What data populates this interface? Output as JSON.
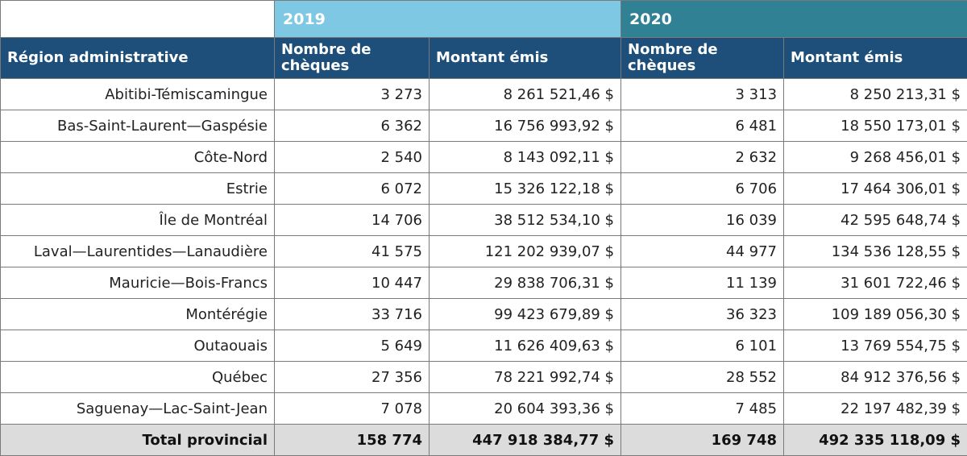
{
  "years": [
    "2019",
    "2020"
  ],
  "headers": {
    "region": "Région administrative",
    "count": "Nombre de chèques",
    "amount": "Montant émis"
  },
  "rows": [
    {
      "region": "Abitibi-Témiscamingue",
      "count_2019": "3 273",
      "amount_2019": "8 261 521,46 $",
      "count_2020": "3 313",
      "amount_2020": "8 250 213,31 $"
    },
    {
      "region": "Bas-Saint-Laurent—Gaspésie",
      "count_2019": "6 362",
      "amount_2019": "16 756 993,92 $",
      "count_2020": "6 481",
      "amount_2020": "18 550 173,01 $"
    },
    {
      "region": "Côte-Nord",
      "count_2019": "2 540",
      "amount_2019": "8 143 092,11 $",
      "count_2020": "2 632",
      "amount_2020": "9 268 456,01 $"
    },
    {
      "region": "Estrie",
      "count_2019": "6 072",
      "amount_2019": "15 326 122,18 $",
      "count_2020": "6 706",
      "amount_2020": "17 464 306,01 $"
    },
    {
      "region": "Île de Montréal",
      "count_2019": "14 706",
      "amount_2019": "38 512 534,10 $",
      "count_2020": "16 039",
      "amount_2020": "42 595 648,74 $"
    },
    {
      "region": "Laval—Laurentides—Lanaudière",
      "count_2019": "41 575",
      "amount_2019": "121 202 939,07 $",
      "count_2020": "44 977",
      "amount_2020": "134 536 128,55 $"
    },
    {
      "region": "Mauricie—Bois-Francs",
      "count_2019": "10 447",
      "amount_2019": "29 838 706,31 $",
      "count_2020": "11 139",
      "amount_2020": "31 601 722,46 $"
    },
    {
      "region": "Montérégie",
      "count_2019": "33 716",
      "amount_2019": "99 423 679,89 $",
      "count_2020": "36 323",
      "amount_2020": "109 189 056,30 $"
    },
    {
      "region": "Outaouais",
      "count_2019": "5 649",
      "amount_2019": "11 626 409,63 $",
      "count_2020": "6 101",
      "amount_2020": "13 769 554,75 $"
    },
    {
      "region": "Québec",
      "count_2019": "27 356",
      "amount_2019": "78 221 992,74 $",
      "count_2020": "28 552",
      "amount_2020": "84 912 376,56 $"
    },
    {
      "region": "Saguenay—Lac-Saint-Jean",
      "count_2019": "7 078",
      "amount_2019": "20 604 393,36 $",
      "count_2020": "7 485",
      "amount_2020": "22 197 482,39 $"
    }
  ],
  "total": {
    "label": "Total provincial",
    "count_2019": "158 774",
    "amount_2019": "447 918 384,77 $",
    "count_2020": "169 748",
    "amount_2020": "492 335 118,09 $"
  }
}
